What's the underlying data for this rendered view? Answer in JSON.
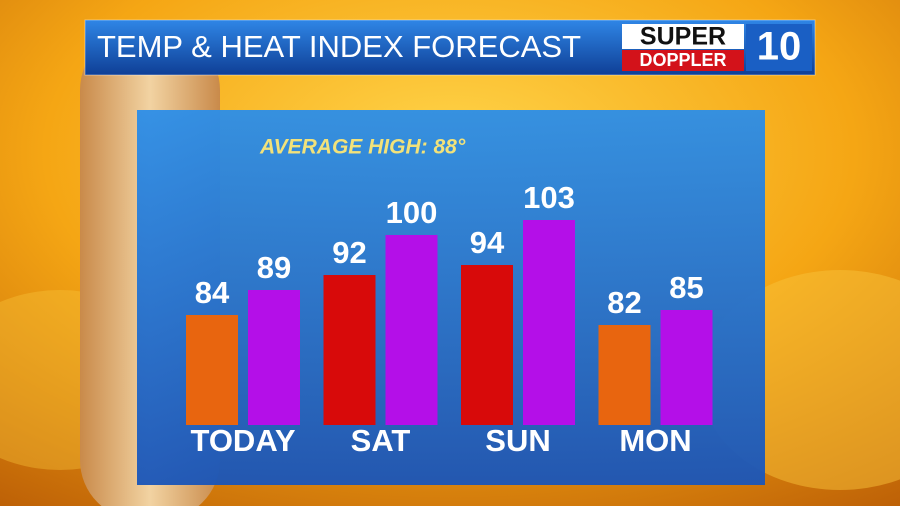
{
  "chart_data": {
    "type": "bar",
    "title": "TEMP & HEAT INDEX FORECAST",
    "annotation": "AVERAGE HIGH: 88°",
    "categories": [
      "TODAY",
      "SAT",
      "SUN",
      "MON"
    ],
    "series": [
      {
        "colors": [
          "#e8650f",
          "#d80a0a",
          "#d80a0a",
          "#e8650f"
        ],
        "values": [
          84,
          92,
          94,
          82
        ]
      },
      {
        "color": "#b40fe8",
        "values": [
          89,
          100,
          103,
          85
        ]
      }
    ]
  },
  "logo": {
    "line1": "SUPER",
    "line2": "DOPPLER",
    "number": "10"
  }
}
